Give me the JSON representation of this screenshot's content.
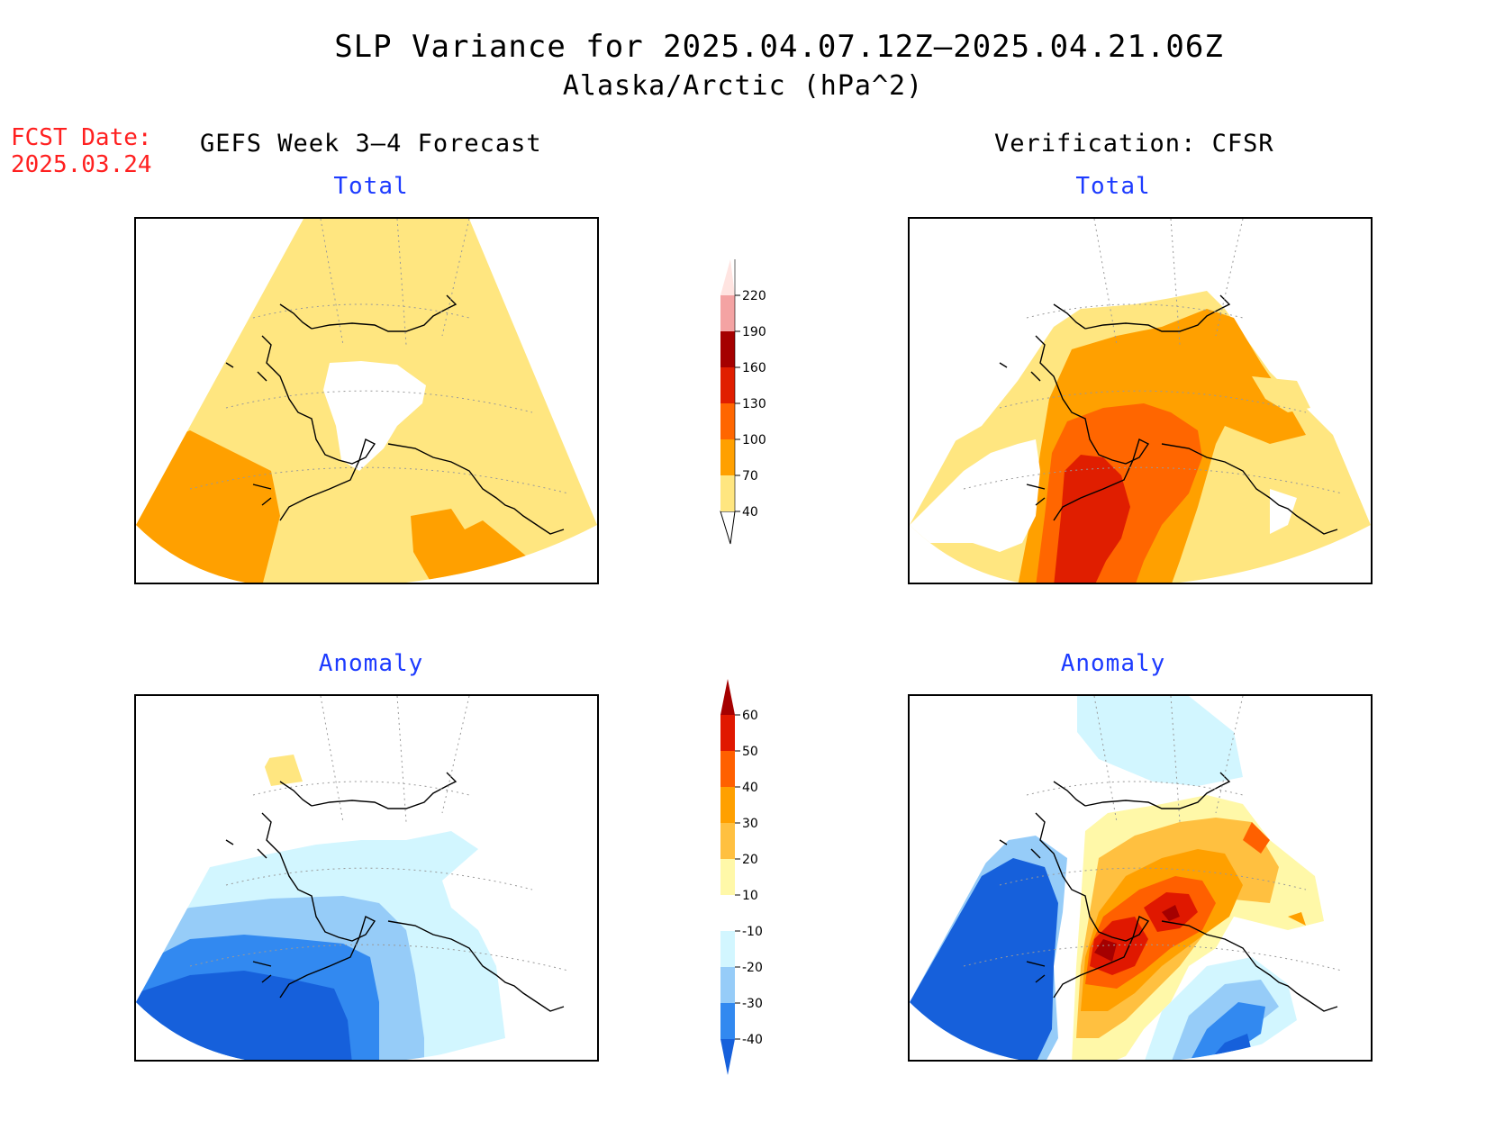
{
  "title": {
    "line1": "SLP Variance for 2025.04.07.12Z–2025.04.21.06Z",
    "line2": "Alaska/Arctic (hPa^2)"
  },
  "forecast_date": {
    "label": "FCST Date:",
    "value": "2025.03.24"
  },
  "columns": {
    "left_heading": "GEFS Week 3–4 Forecast",
    "right_heading": "Verification: CFSR"
  },
  "panels": {
    "top_left_title": "Total",
    "top_right_title": "Total",
    "bottom_left_title": "Anomaly",
    "bottom_right_title": "Anomaly"
  },
  "colorbars": {
    "total": {
      "labels": [
        "40",
        "70",
        "100",
        "130",
        "160",
        "190",
        "220"
      ],
      "colors": [
        "#ffe680",
        "#ffa000",
        "#ff6600",
        "#e01e00",
        "#a50000",
        "#f4a3a3",
        "#ffe4e1"
      ]
    },
    "anomaly": {
      "labels": [
        "-40",
        "-30",
        "-20",
        "-10",
        "10",
        "20",
        "30",
        "40",
        "50",
        "60"
      ],
      "colors": [
        "#1660db",
        "#3289f0",
        "#96ccf8",
        "#d2f6ff",
        "#ffffff",
        "#fff8a8",
        "#ffc040",
        "#ffa000",
        "#ff6000",
        "#e01800",
        "#a50000"
      ]
    }
  },
  "palette": {
    "light_yellow": "#ffe680",
    "orange": "#ffa000",
    "dark_orange": "#ff6600",
    "red": "#e01e00",
    "dark_red": "#a50000",
    "pale_yellow": "#fff8a8",
    "light_orange": "#ffc040",
    "blue_1": "#d2f6ff",
    "blue_2": "#96ccf8",
    "blue_3": "#3289f0",
    "blue_4": "#1660db"
  }
}
